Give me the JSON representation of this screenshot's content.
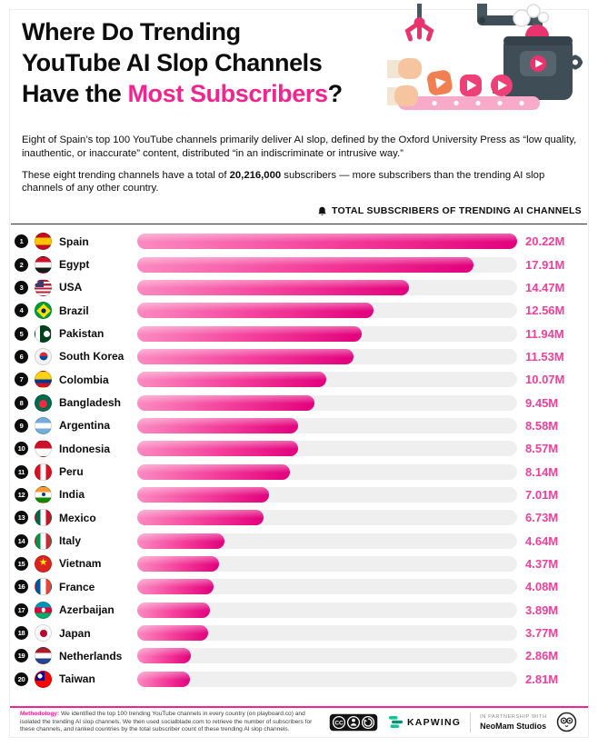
{
  "header": {
    "title_line1": "Where Do Trending",
    "title_line2": "YouTube AI Slop Channels",
    "title_line3_prefix": "Have the ",
    "title_line3_accent": "Most Subscribers",
    "title_line3_suffix": "?"
  },
  "intro": {
    "paragraph1": "Eight of Spain’s top 100 YouTube channels primarily deliver AI slop, defined by the Oxford University Press as “low quality, inauthentic, or inaccurate” content, distributed “in an indiscriminate or intrusive way.”",
    "paragraph2_prefix": "These eight trending channels have a total of ",
    "paragraph2_bold": "20,216,000",
    "paragraph2_suffix": " subscribers — more subscribers than the trending AI slop channels of any other country."
  },
  "chart_data": {
    "type": "bar",
    "orientation": "horizontal",
    "title": "TOTAL SUBSCRIBERS OF TRENDING AI CHANNELS",
    "unit": "M subscribers",
    "xlim": [
      0,
      20.22
    ],
    "categories": [
      "Spain",
      "Egypt",
      "USA",
      "Brazil",
      "Pakistan",
      "South Korea",
      "Colombia",
      "Bangladesh",
      "Argentina",
      "Indonesia",
      "Peru",
      "India",
      "Mexico",
      "Italy",
      "Vietnam",
      "France",
      "Azerbaijan",
      "Japan",
      "Netherlands",
      "Taiwan"
    ],
    "values": [
      20.22,
      17.91,
      14.47,
      12.56,
      11.94,
      11.53,
      10.07,
      9.45,
      8.58,
      8.57,
      8.14,
      7.01,
      6.73,
      4.64,
      4.37,
      4.08,
      3.89,
      3.77,
      2.86,
      2.81
    ],
    "value_labels": [
      "20.22M",
      "17.91M",
      "14.47M",
      "12.56M",
      "11.94M",
      "11.53M",
      "10.07M",
      "9.45M",
      "8.58M",
      "8.57M",
      "8.14M",
      "7.01M",
      "6.73M",
      "4.64M",
      "4.37M",
      "4.08M",
      "3.89M",
      "3.77M",
      "2.86M",
      "2.81M"
    ],
    "ranks": [
      1,
      2,
      3,
      4,
      5,
      6,
      7,
      8,
      9,
      10,
      11,
      12,
      13,
      14,
      15,
      16,
      17,
      18,
      19,
      20
    ],
    "flag_icons": [
      "flag-spain",
      "flag-egypt",
      "flag-usa",
      "flag-brazil",
      "flag-pakistan",
      "flag-south-korea",
      "flag-colombia",
      "flag-bangladesh",
      "flag-argentina",
      "flag-indonesia",
      "flag-peru",
      "flag-india",
      "flag-mexico",
      "flag-italy",
      "flag-vietnam",
      "flag-france",
      "flag-azerbaijan",
      "flag-japan",
      "flag-netherlands",
      "flag-taiwan"
    ],
    "bar_gradient": [
      "#fb8ac0",
      "#e2007c"
    ],
    "track_color": "#efefef",
    "value_label_color": "#f0409a",
    "legend_icon": "bell-icon",
    "grid": false
  },
  "footer": {
    "methodology_label": "Methodology:",
    "methodology_text": " We identified the top 100 trending YouTube channels in every country (on playboard.co) and isolated the trending AI slop channels. We then used socialblade.com to retrieve the number of subscribers for these channels, and ranked countries by the total subscriber count of these trending AI slop channels.",
    "license": "CC BY-SA",
    "brand": "KAPWING",
    "partnership_label": "IN PARTNERSHIP WITH",
    "partner": "NeoMam Studios"
  },
  "colors": {
    "accent": "#f2258f",
    "badge": "#0d0d0d",
    "machine": "#3f4e56"
  }
}
